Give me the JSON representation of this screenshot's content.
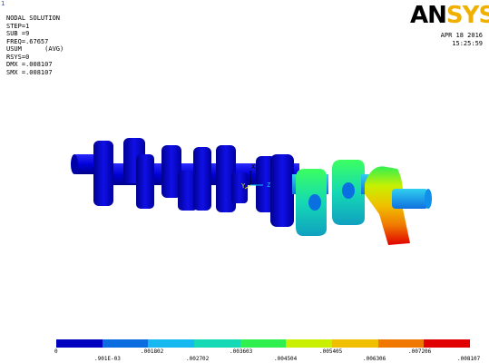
{
  "window_number": "1",
  "info_lines": [
    "NODAL SOLUTION",
    "",
    "STEP=1",
    "SUB =9",
    "FREQ=.67657",
    "USUM      (AVG)",
    "RSYS=0",
    "DMX =.008107",
    "SMX =.008107"
  ],
  "logo": {
    "part1": "AN",
    "part2": "SYS"
  },
  "date": "APR 18 2016",
  "time": "15:25:59",
  "triad": {
    "x": "X",
    "y": "Y",
    "z": "Z"
  },
  "legend": {
    "colors": [
      "#0000c0",
      "#0b6de0",
      "#16b8f0",
      "#14d9b4",
      "#30f050",
      "#c8f000",
      "#f0c000",
      "#f07800",
      "#e00000"
    ],
    "top_labels": [
      "0",
      ".001802",
      ".003603",
      ".005405",
      ".007206"
    ],
    "bottom_labels": [
      ".901E-03",
      ".002702",
      ".004504",
      ".006306",
      ".008107"
    ]
  }
}
